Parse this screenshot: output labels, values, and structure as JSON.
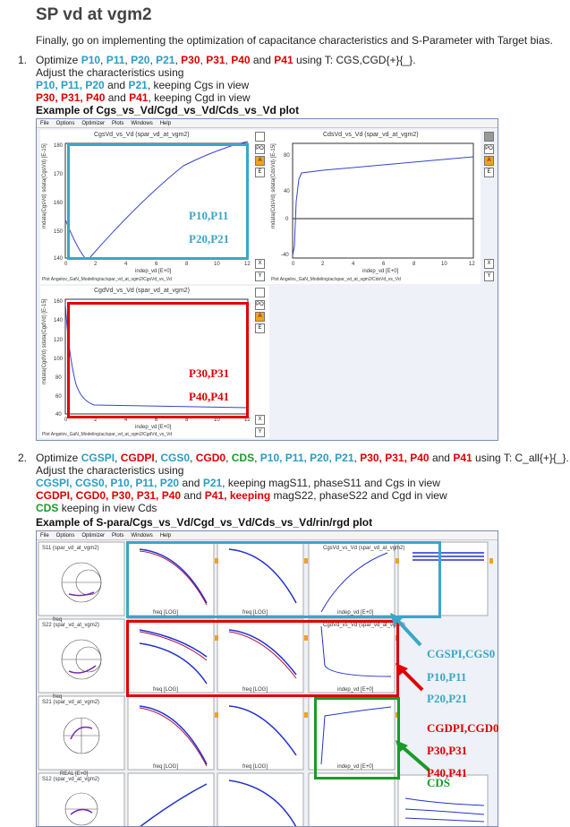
{
  "title": "SP vd at vgm2",
  "intro": "Finally, go on implementing the optimization of capacitance characteristics and S-Parameter with Target bias.",
  "step1": {
    "num": "1.",
    "optimize": "Optimize",
    "p10": "P10",
    "c1": ",",
    "p11": "P11",
    "p20": "P20",
    "p21": "P21",
    "p30": "P30",
    "p31": "P31",
    "p40": "P40",
    "and": "and",
    "p41": "P41",
    "using": "using T: CGS,CGD{+}{_}.",
    "adjust": "Adjust the characteristics using",
    "line3a": "P10, P11, P20",
    "line3b": "and",
    "line3c": "P21",
    "line3d": ", keeping Cgs in view",
    "line4a": "P30, P31, P40",
    "line4b": "and",
    "line4c": "P41",
    "line4d": ", keeping Cgd in view",
    "example": "Example of Cgs_vs_Vd/Cgd_vs_Vd/Cds_vs_Vd plot"
  },
  "step2": {
    "num": "2.",
    "optimize": "Optimize",
    "params_blue1": "CGSPI",
    "params_red1": "CGDPI",
    "params_blue2": "CGS0",
    "params_red2": "CGD0",
    "params_green": "CDS",
    "params_blue3": "P10, P11, P20, P21",
    "params_red3": "P30, P31, P40",
    "and": "and",
    "params_red4": "P41",
    "using": "using T: C_all{+}{_}.",
    "adjust": "Adjust the characteristics using",
    "l3a": "CGSPI, CGS0, P10, P11, P20",
    "l3b": "and",
    "l3c": "P21",
    "l3d": ", keeping magS11, phaseS11 and Cgs in view",
    "l4a": "CGDPI, CGD0, P30, P31, P40",
    "l4b": "and",
    "l4c": "P41, keeping",
    "l4d": "magS22, phaseS22 and Cgd in view",
    "l5a": "CDS",
    "l5b": "keeping in view Cds",
    "example": "Example of S-para/Cgs_vs_Vd/Cgd_vs_Vd/Cds_vs_Vd/rin/rgd plot"
  },
  "window1": {
    "menu": [
      "File",
      "Options",
      "Optimizer",
      "Plots",
      "Windows",
      "Help"
    ],
    "plot_cgs": {
      "title": "CgsVd_vs_Vd (spar_vd_at_vgm2)",
      "ylabel": "mdata(CgsVd) sdata(CgsVd) [E-15]",
      "xlabel": "indep_vd [E+0]",
      "yticks": [
        "180",
        "170",
        "160",
        "150",
        "140"
      ],
      "xticks": [
        "0",
        "2",
        "4",
        "6",
        "8",
        "10",
        "12"
      ],
      "footer": "Plot Angelov_GaN_Modeling/ac/spar_vd_at_vgm2/CgsVd_vs_Vd"
    },
    "plot_cds": {
      "title": "CdsVd_vs_Vd (spar_vd_at_vgm2)",
      "ylabel": "mdata(CdsVd) sdata(CdsVd) [E-15]",
      "xlabel": "indep_vd [E+0]",
      "yticks": [
        "80",
        "40",
        "0",
        "-40"
      ],
      "xticks": [
        "0",
        "2",
        "4",
        "6",
        "8",
        "10",
        "12"
      ],
      "footer": "Plot Angelov_GaN_Modeling/ac/spar_vd_at_vgm2/CdsVd_vs_Vd"
    },
    "plot_cgd": {
      "title": "CgdVd_vs_Vd (spar_vd_at_vgm2)",
      "ylabel": "mdata(CgdVd) sdata(CgdVd) [E-15]",
      "xlabel": "indep_vd [E+0]",
      "yticks": [
        "160",
        "140",
        "120",
        "100",
        "80",
        "60",
        "40"
      ],
      "xticks": [
        "0",
        "2",
        "4",
        "6",
        "8",
        "10",
        "12"
      ],
      "footer": "Plot Angelov_GaN_Modeling/ac/spar_vd_at_vgm2/CgdVd_vs_Vd"
    },
    "side_buttons": [
      "PO",
      "A",
      "E"
    ],
    "xy_buttons": [
      "X",
      "Y"
    ],
    "annot_blue": [
      "P10,P11",
      "P20,P21"
    ],
    "annot_red": [
      "P30,P31",
      "P40,P41"
    ]
  },
  "window2": {
    "menu": [
      "File",
      "Options",
      "Optimizer",
      "Plots",
      "Windows",
      "Help"
    ],
    "rows": [
      {
        "smith": "S11 (spar_vd_at_vgm2)",
        "smith_label": "freq"
      },
      {
        "smith": "S22 (spar_vd_at_vgm2)",
        "smith_label": "freq"
      },
      {
        "smith": "S21 (spar_vd_at_vgm2)",
        "smith_label": "REAL [E+0]"
      },
      {
        "smith": "S12 (spar_vd_at_vgm2)",
        "smith_label": ""
      }
    ],
    "freq_label": "freq [LOG]",
    "cgs_title": "CgsVd_vs_Vd (spar_vd_at_vgm2)",
    "cgd_title": "CgdVd_vs_Vd (spar_vd_at_vgm2)",
    "vd_label": "indep_vd [E+0]",
    "annot_blue": [
      "CGSPI,CGS0",
      "P10,P11",
      "P20,P21"
    ],
    "annot_red": [
      "CGDPI,CGD0",
      "P30,P31",
      "P40,P41"
    ],
    "annot_green": "CDS",
    "colors": {
      "blue": "#2a9cc4",
      "red": "#e00000",
      "green": "#1a9a2a"
    }
  }
}
